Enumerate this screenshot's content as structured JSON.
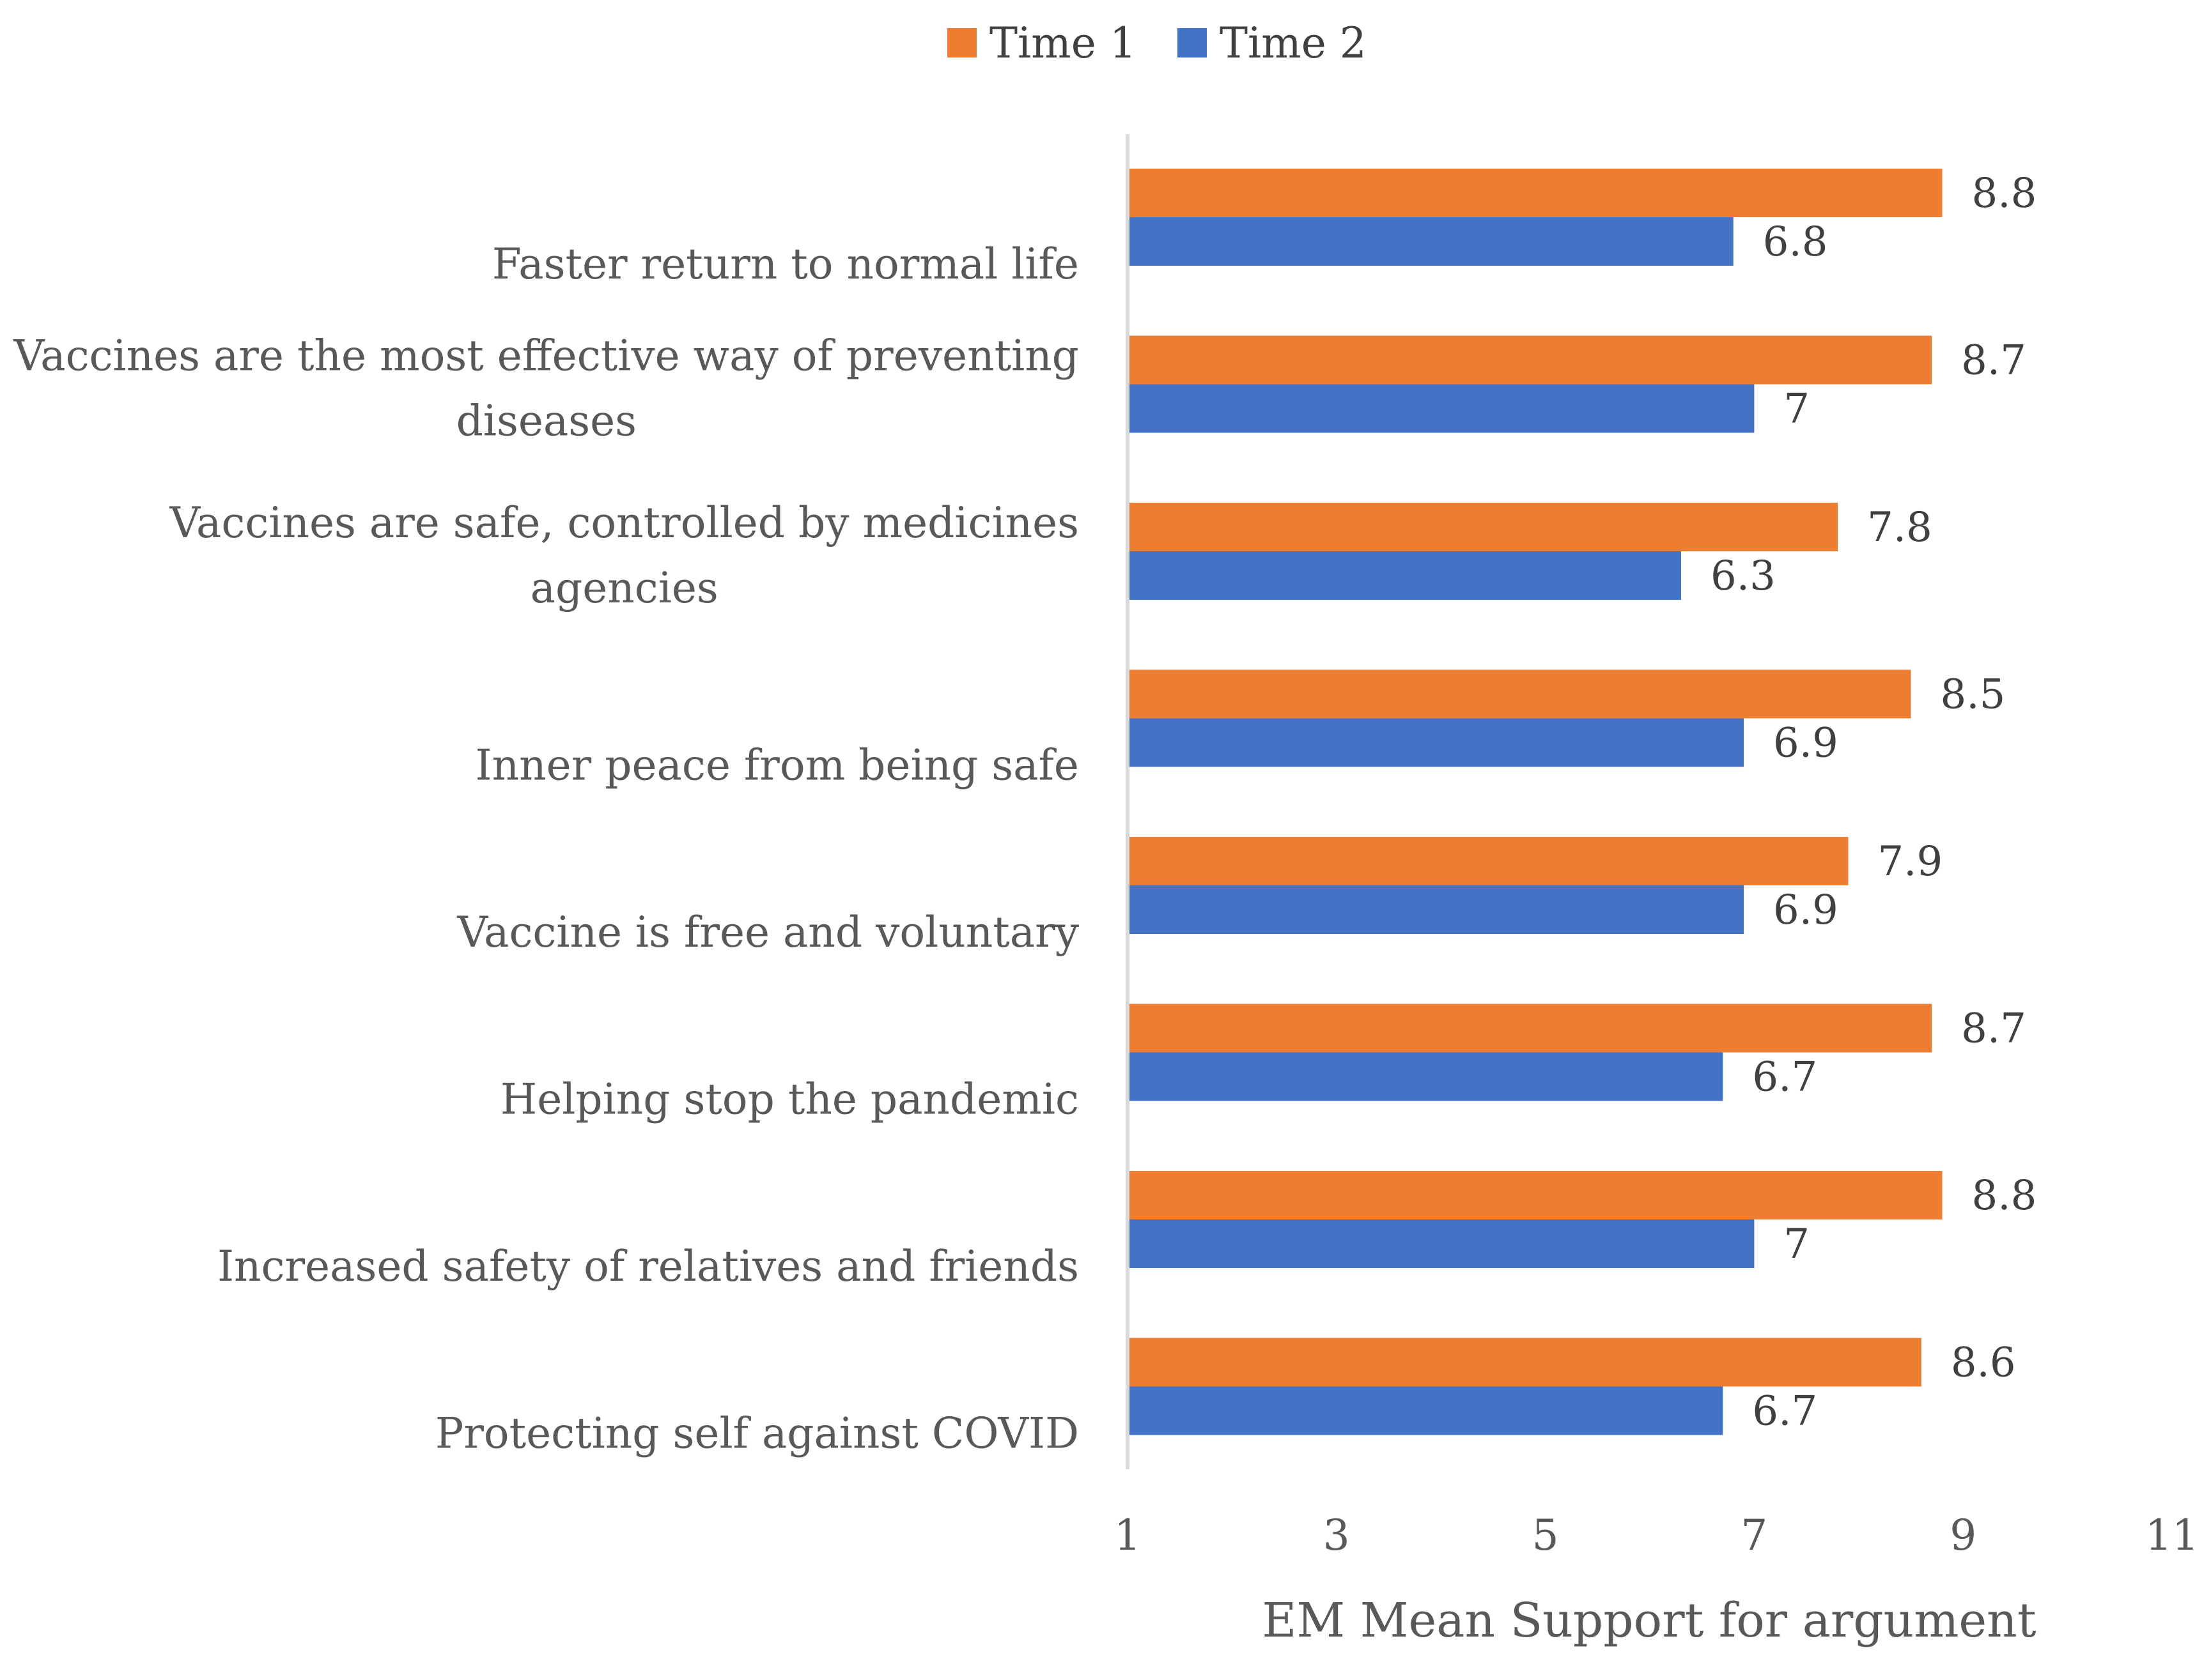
{
  "chart_data": {
    "type": "bar",
    "orientation": "horizontal",
    "title": "",
    "xlabel": "EM Mean Support for argument",
    "ylabel": "",
    "xlim": [
      1,
      11
    ],
    "xticks": [
      1,
      3,
      5,
      7,
      9,
      11
    ],
    "grid": false,
    "legend_position": "top-center",
    "categories": [
      "Faster return to normal life",
      "Vaccines are the most effective way of preventing diseases",
      "Vaccines are safe, controlled by medicines agencies",
      "Inner peace from being safe",
      "Vaccine is free and voluntary",
      "Helping stop the pandemic",
      "Increased safety of relatives and friends",
      "Protecting self against COVID"
    ],
    "category_lines": [
      [
        "Faster return to normal life"
      ],
      [
        "Vaccines are the most effective way of preventing",
        "diseases"
      ],
      [
        "Vaccines are safe, controlled by medicines",
        "agencies"
      ],
      [
        "Inner peace from being safe"
      ],
      [
        "Vaccine is free and voluntary"
      ],
      [
        "Helping stop the pandemic"
      ],
      [
        "Increased safety of relatives and friends"
      ],
      [
        "Protecting self against COVID"
      ]
    ],
    "series": [
      {
        "name": "Time 1",
        "color": "#ED7D31",
        "values": [
          8.8,
          8.7,
          7.8,
          8.5,
          7.9,
          8.7,
          8.8,
          8.6
        ],
        "labels": [
          "8.8",
          "8.7",
          "7.8",
          "8.5",
          "7.9",
          "8.7",
          "8.8",
          "8.6"
        ]
      },
      {
        "name": "Time 2",
        "color": "#4472C4",
        "values": [
          6.8,
          7,
          6.3,
          6.9,
          6.9,
          6.7,
          7,
          6.7
        ],
        "labels": [
          "6.8",
          "7",
          "6.3",
          "6.9",
          "6.9",
          "6.7",
          "7",
          "6.7"
        ]
      }
    ]
  }
}
